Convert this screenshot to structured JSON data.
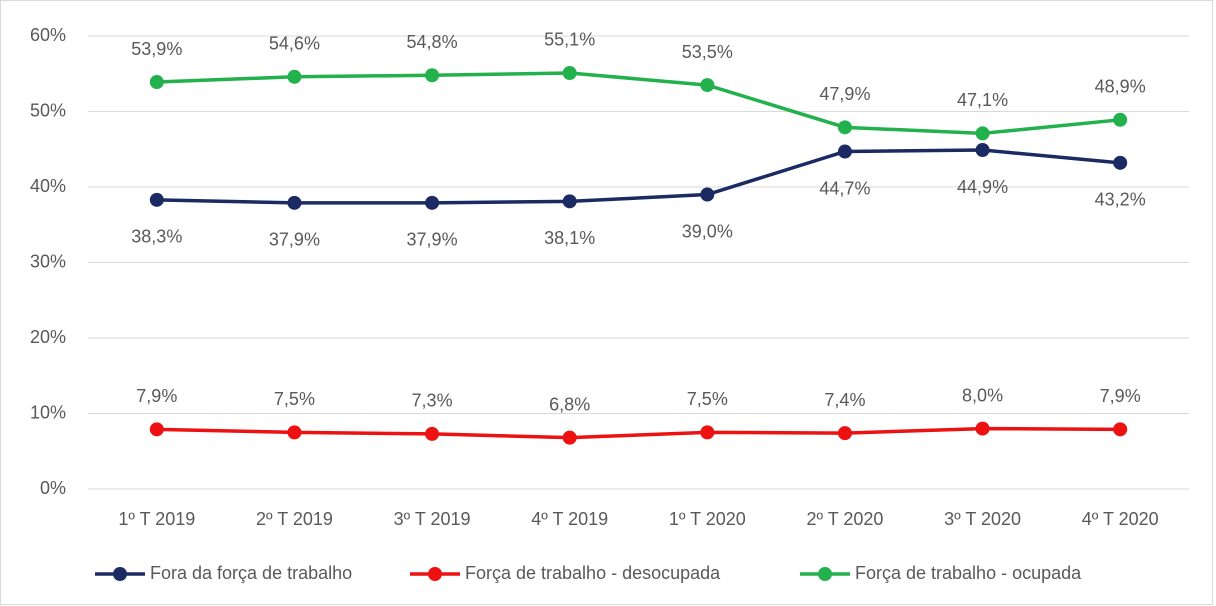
{
  "chart_data": {
    "type": "line",
    "categories": [
      "1º T 2019",
      "2º T 2019",
      "3º T 2019",
      "4º T 2019",
      "1º T 2020",
      "2º T 2020",
      "3º T 2020",
      "4º T 2020"
    ],
    "series": [
      {
        "name": "Fora da força de trabalho",
        "color": "#1b2a63",
        "values": [
          38.3,
          37.9,
          37.9,
          38.1,
          39.0,
          44.7,
          44.9,
          43.2
        ],
        "value_labels": [
          "38,3%",
          "37,9%",
          "37,9%",
          "38,1%",
          "39,0%",
          "44,7%",
          "44,9%",
          "43,2%"
        ]
      },
      {
        "name": "Força de trabalho - desocupada",
        "color": "#ee1111",
        "values": [
          7.9,
          7.5,
          7.3,
          6.8,
          7.5,
          7.4,
          8.0,
          7.9
        ],
        "value_labels": [
          "7,9%",
          "7,5%",
          "7,3%",
          "6,8%",
          "7,5%",
          "7,4%",
          "8,0%",
          "7,9%"
        ]
      },
      {
        "name": "Força de trabalho - ocupada",
        "color": "#22b14c",
        "values": [
          53.9,
          54.6,
          54.8,
          55.1,
          53.5,
          47.9,
          47.1,
          48.9
        ],
        "value_labels": [
          "53,9%",
          "54,6%",
          "54,8%",
          "55,1%",
          "53,5%",
          "47,9%",
          "47,1%",
          "48,9%"
        ]
      }
    ],
    "ylim": [
      0,
      60
    ],
    "yticks": [
      {
        "value": 0,
        "label": "0%"
      },
      {
        "value": 10,
        "label": "10%"
      },
      {
        "value": 20,
        "label": "20%"
      },
      {
        "value": 30,
        "label": "30%"
      },
      {
        "value": 40,
        "label": "40%"
      },
      {
        "value": 50,
        "label": "50%"
      },
      {
        "value": 60,
        "label": "60%"
      }
    ],
    "grid": true,
    "legend": "bottom"
  }
}
